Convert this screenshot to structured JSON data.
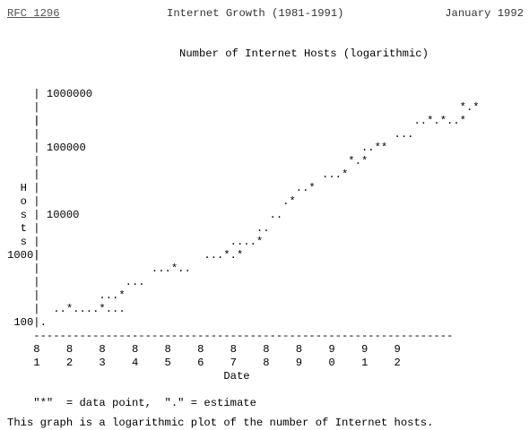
{
  "header": {
    "rfc_link": "RFC 1296",
    "title": "Internet Growth (1981-1991)",
    "date": "January 1992"
  },
  "graph": {
    "title": "Number of Internet Hosts (logarithmic)",
    "ylabel": "Hosts",
    "xlabel": "Date",
    "lines": [
      "    | 1000000",
      "    |                                                                *.*",
      "    |",
      "    |                                                         ..*.*..*",
      "    |                                                      ...",
      "    | 100000                                          ..**",
      "    |                                               *.*",
      "    |                                           ...*",
      "  H |                                       ..*",
      "  o |                                     .*",
      "  s | 10000                             ..",
      "  t |                                 ..",
      "  s |                             ....*",
      "    |                         ...*.*",
      "    |                 ...*..",
      "1000|",
      "    |             ...",
      "    |         ...*",
      "    |  ..*....*...",
      " 100|.",
      "    ----------------------------------------------------------------",
      "    8    8    8    8    8    8    8    8    8    9    9    9",
      "    1    2    3    4    5    6    7    8    9    0    1    2",
      "                                 Date"
    ]
  },
  "legend": "    \"*\"  = data point,  \".\" = estimate",
  "caption": "This graph is a logarithmic plot of the number of Internet hosts."
}
